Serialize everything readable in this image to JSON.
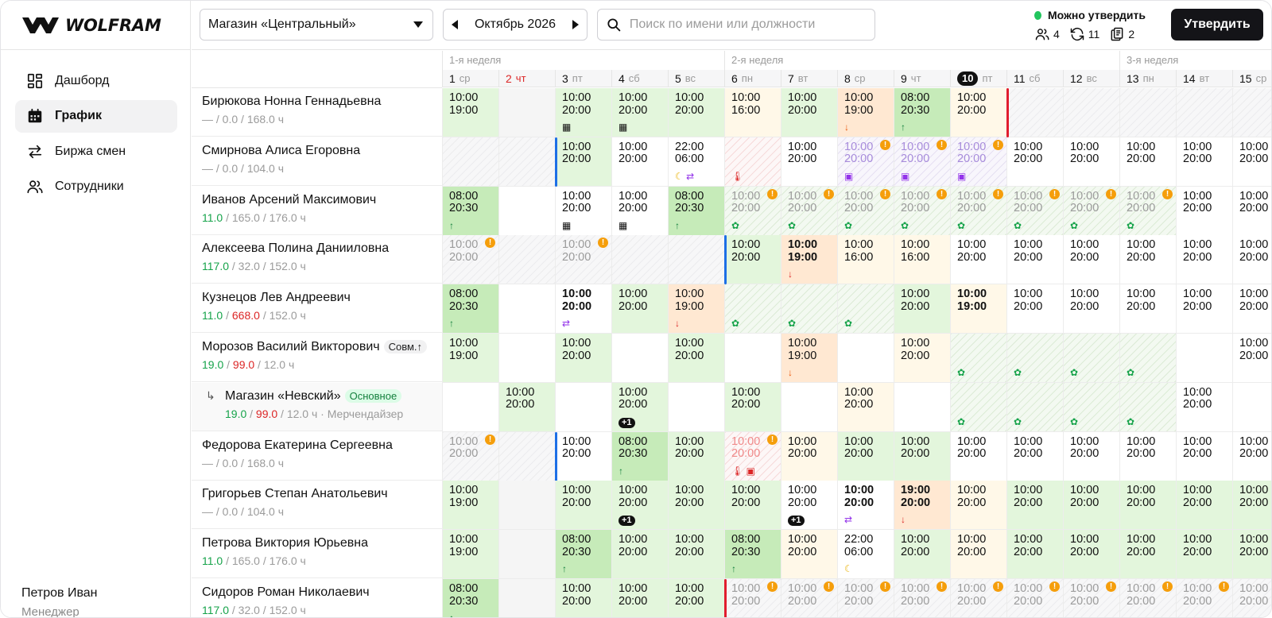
{
  "brand": {
    "name": "WOLFRAM"
  },
  "nav": [
    {
      "label": "Дашборд",
      "icon": "dashboard-icon",
      "active": false
    },
    {
      "label": "График",
      "icon": "calendar-icon",
      "active": true
    },
    {
      "label": "Биржа смен",
      "icon": "swap-icon",
      "active": false
    },
    {
      "label": "Сотрудники",
      "icon": "users-icon",
      "active": false
    }
  ],
  "user": {
    "name": "Петров Иван",
    "role": "Менеджер"
  },
  "toolbar": {
    "store": "Магазин «Центральный»",
    "month": "Октябрь 2026",
    "search_placeholder": "Поиск по имени или должности",
    "status": "Можно утвердить",
    "counts": {
      "people": "4",
      "swaps": "11",
      "docs": "2"
    },
    "approve_label": "Утвердить"
  },
  "weeks": [
    {
      "label": "1-я неделя",
      "start": 0
    },
    {
      "label": "2-я неделя",
      "start": 5
    },
    {
      "label": "3-я неделя",
      "start": 12
    }
  ],
  "days": [
    {
      "d": "1",
      "w": "ср"
    },
    {
      "d": "2",
      "w": "чт",
      "red": true
    },
    {
      "d": "3",
      "w": "пт"
    },
    {
      "d": "4",
      "w": "сб"
    },
    {
      "d": "5",
      "w": "вс"
    },
    {
      "d": "6",
      "w": "пн"
    },
    {
      "d": "7",
      "w": "вт"
    },
    {
      "d": "8",
      "w": "ср"
    },
    {
      "d": "9",
      "w": "чт"
    },
    {
      "d": "10",
      "w": "пт",
      "today": true
    },
    {
      "d": "11",
      "w": "сб"
    },
    {
      "d": "12",
      "w": "вс"
    },
    {
      "d": "13",
      "w": "пн"
    },
    {
      "d": "14",
      "w": "вт"
    },
    {
      "d": "15",
      "w": "ср"
    }
  ],
  "rows": [
    {
      "name": "Бирюкова Нонна Геннадьевна",
      "h1": "—",
      "h1c": "",
      "h2": "0.0",
      "h2c": "",
      "h3": "168.0 ч",
      "cells": [
        {
          "t1": "10:00",
          "t2": "19:00",
          "bg": "lg"
        },
        {
          "bg": "gray"
        },
        {
          "t1": "10:00",
          "t2": "20:00",
          "bg": "lg",
          "icon": "qr"
        },
        {
          "t1": "10:00",
          "t2": "20:00",
          "bg": "lg",
          "icon": "qr"
        },
        {
          "t1": "10:00",
          "t2": "20:00",
          "bg": "lg"
        },
        {
          "t1": "10:00",
          "t2": "16:00",
          "bg": "yl"
        },
        {
          "t1": "10:00",
          "t2": "20:00",
          "bg": "lg"
        },
        {
          "t1": "10:00",
          "t2": "19:00",
          "bg": "or",
          "icon": "dnor"
        },
        {
          "t1": "08:00",
          "t2": "20:30",
          "bg": "dg",
          "icon": "up"
        },
        {
          "t1": "10:00",
          "t2": "20:00",
          "bg": "yl"
        },
        {
          "bg": "hatch",
          "bar": "r"
        },
        {
          "bg": "hatch"
        },
        {
          "bg": "hatch"
        },
        {
          "bg": "hatch"
        },
        {
          "bg": "hatch"
        }
      ]
    },
    {
      "name": "Смирнова Алиса Егоровна",
      "h1": "—",
      "h1c": "",
      "h2": "0.0",
      "h2c": "",
      "h3": "104.0 ч",
      "cells": [
        {
          "bg": "hatch"
        },
        {
          "bg": "hatch"
        },
        {
          "t1": "10:00",
          "t2": "20:00",
          "bg": "lg",
          "bar": "b"
        },
        {
          "t1": "10:00",
          "t2": "20:00",
          "bg": "emp"
        },
        {
          "t1": "22:00",
          "t2": "06:00",
          "bg": "emp",
          "icon": "moonswap"
        },
        {
          "bg": "hatchrd",
          "icon": "therm"
        },
        {
          "t1": "10:00",
          "t2": "20:00",
          "bg": "emp"
        },
        {
          "t1": "10:00",
          "t2": "20:00",
          "bg": "hatchpu",
          "fade": "pu",
          "warn": true,
          "icon": "bag"
        },
        {
          "t1": "10:00",
          "t2": "20:00",
          "bg": "hatchpu",
          "fade": "pu",
          "warn": true,
          "icon": "bag"
        },
        {
          "t1": "10:00",
          "t2": "20:00",
          "bg": "hatchpu",
          "fade": "pu",
          "warn": true,
          "icon": "bag"
        },
        {
          "t1": "10:00",
          "t2": "20:00",
          "bg": "emp"
        },
        {
          "t1": "10:00",
          "t2": "20:00",
          "bg": "emp"
        },
        {
          "t1": "10:00",
          "t2": "20:00",
          "bg": "emp"
        },
        {
          "t1": "10:00",
          "t2": "20:00",
          "bg": "emp"
        },
        {
          "t1": "10:00",
          "t2": "20:00",
          "bg": "emp"
        }
      ]
    },
    {
      "name": "Иванов Арсений Максимович",
      "h1": "11.0",
      "h1c": "g",
      "h2": "165.0",
      "h2c": "",
      "h3": "176.0 ч",
      "cells": [
        {
          "t1": "08:00",
          "t2": "20:30",
          "bg": "dg",
          "icon": "up"
        },
        {
          "bg": "emp"
        },
        {
          "t1": "10:00",
          "t2": "20:00",
          "bg": "emp",
          "icon": "qr"
        },
        {
          "t1": "10:00",
          "t2": "20:00",
          "bg": "emp",
          "icon": "qr"
        },
        {
          "t1": "08:00",
          "t2": "20:30",
          "bg": "dg",
          "icon": "up"
        },
        {
          "t1": "10:00",
          "t2": "20:00",
          "bg": "hatchgr",
          "fade": "g",
          "warn": true,
          "icon": "leaf"
        },
        {
          "t1": "10:00",
          "t2": "20:00",
          "bg": "hatchgr",
          "fade": "g",
          "warn": true,
          "icon": "leaf"
        },
        {
          "t1": "10:00",
          "t2": "20:00",
          "bg": "hatchgr",
          "fade": "g",
          "warn": true,
          "icon": "leaf"
        },
        {
          "t1": "10:00",
          "t2": "20:00",
          "bg": "hatchgr",
          "fade": "g",
          "warn": true,
          "icon": "leaf"
        },
        {
          "t1": "10:00",
          "t2": "20:00",
          "bg": "hatchgr",
          "fade": "g",
          "warn": true,
          "icon": "leaf"
        },
        {
          "t1": "10:00",
          "t2": "20:00",
          "bg": "hatchgr",
          "fade": "g",
          "warn": true,
          "icon": "leaf"
        },
        {
          "t1": "10:00",
          "t2": "20:00",
          "bg": "hatchgr",
          "fade": "g",
          "warn": true,
          "icon": "leaf"
        },
        {
          "t1": "10:00",
          "t2": "20:00",
          "bg": "hatchgr",
          "fade": "g",
          "warn": true,
          "icon": "leaf"
        },
        {
          "t1": "10:00",
          "t2": "20:00",
          "bg": "emp"
        },
        {
          "t1": "10:00",
          "t2": "20:00",
          "bg": "emp"
        }
      ]
    },
    {
      "name": "Алексеева Полина Данииловна",
      "h1": "117.0",
      "h1c": "g",
      "h2": "32.0",
      "h2c": "",
      "h3": "152.0 ч",
      "cells": [
        {
          "t1": "10:00",
          "t2": "20:00",
          "bg": "hatch",
          "fade": "g",
          "warn": true
        },
        {
          "bg": "hatch"
        },
        {
          "t1": "10:00",
          "t2": "20:00",
          "bg": "hatch",
          "fade": "g",
          "warn": true
        },
        {
          "bg": "hatch"
        },
        {
          "bg": "hatch"
        },
        {
          "t1": "10:00",
          "t2": "20:00",
          "bg": "lg",
          "bar": "b"
        },
        {
          "t1": "10:00",
          "t2": "19:00",
          "bg": "or",
          "bold": true,
          "icon": "dn"
        },
        {
          "t1": "10:00",
          "t2": "16:00",
          "bg": "yl"
        },
        {
          "t1": "10:00",
          "t2": "16:00",
          "bg": "yl"
        },
        {
          "t1": "10:00",
          "t2": "20:00",
          "bg": "emp"
        },
        {
          "t1": "10:00",
          "t2": "20:00",
          "bg": "emp"
        },
        {
          "t1": "10:00",
          "t2": "20:00",
          "bg": "emp"
        },
        {
          "t1": "10:00",
          "t2": "20:00",
          "bg": "emp"
        },
        {
          "t1": "10:00",
          "t2": "20:00",
          "bg": "emp"
        },
        {
          "t1": "10:00",
          "t2": "20:00",
          "bg": "emp"
        }
      ]
    },
    {
      "name": "Кузнецов Лев Андреевич",
      "h1": "11.0",
      "h1c": "g",
      "h2": "668.0",
      "h2c": "r",
      "h3": "152.0 ч",
      "cells": [
        {
          "t1": "08:00",
          "t2": "20:30",
          "bg": "dg",
          "icon": "up"
        },
        {
          "bg": "emp"
        },
        {
          "t1": "10:00",
          "t2": "20:00",
          "bg": "emp",
          "bold": true,
          "icon": "swap"
        },
        {
          "t1": "10:00",
          "t2": "20:00",
          "bg": "lg"
        },
        {
          "t1": "10:00",
          "t2": "19:00",
          "bg": "or",
          "icon": "dn"
        },
        {
          "bg": "hatchgr",
          "icon": "leaf"
        },
        {
          "bg": "hatchgr",
          "icon": "leaf"
        },
        {
          "bg": "hatchgr",
          "icon": "leaf"
        },
        {
          "t1": "10:00",
          "t2": "20:00",
          "bg": "lg"
        },
        {
          "t1": "10:00",
          "t2": "19:00",
          "bg": "yl",
          "bold": true
        },
        {
          "t1": "10:00",
          "t2": "20:00",
          "bg": "emp"
        },
        {
          "t1": "10:00",
          "t2": "20:00",
          "bg": "emp"
        },
        {
          "t1": "10:00",
          "t2": "20:00",
          "bg": "emp"
        },
        {
          "t1": "10:00",
          "t2": "20:00",
          "bg": "emp"
        },
        {
          "t1": "10:00",
          "t2": "20:00",
          "bg": "emp"
        }
      ]
    },
    {
      "name": "Морозов Василий Викторович",
      "h1": "19.0",
      "h1c": "g",
      "h2": "99.0",
      "h2c": "r",
      "h3": "12.0 ч",
      "badge": "Совм.↑",
      "cells": [
        {
          "t1": "10:00",
          "t2": "19:00",
          "bg": "lg"
        },
        {
          "bg": "emp"
        },
        {
          "t1": "10:00",
          "t2": "20:00",
          "bg": "lg"
        },
        {
          "bg": "emp"
        },
        {
          "t1": "10:00",
          "t2": "20:00",
          "bg": "lg"
        },
        {
          "bg": "emp"
        },
        {
          "t1": "10:00",
          "t2": "19:00",
          "bg": "or",
          "icon": "dnor"
        },
        {
          "bg": "emp"
        },
        {
          "t1": "10:00",
          "t2": "20:00",
          "bg": "yl"
        },
        {
          "bg": "hatchgr",
          "icon": "leaf"
        },
        {
          "bg": "hatchgr",
          "icon": "leaf"
        },
        {
          "bg": "hatchgr",
          "icon": "leaf"
        },
        {
          "bg": "hatchgr",
          "icon": "leaf"
        },
        {
          "bg": "emp"
        },
        {
          "t1": "10:00",
          "t2": "20:00",
          "bg": "emp"
        }
      ]
    },
    {
      "sub": true,
      "name": "Магазин «Невский»",
      "badge": "Основное",
      "badgeGreen": true,
      "h1": "19.0",
      "h1c": "g",
      "h2": "99.0",
      "h2c": "r",
      "h3": "12.0 ч · Мерчендайзер",
      "cells": [
        {
          "bg": "emp"
        },
        {
          "t1": "10:00",
          "t2": "20:00",
          "bg": "lg"
        },
        {
          "bg": "emp"
        },
        {
          "t1": "10:00",
          "t2": "20:00",
          "bg": "lg",
          "icon": "plus",
          "plus": "+1"
        },
        {
          "bg": "emp"
        },
        {
          "t1": "10:00",
          "t2": "20:00",
          "bg": "lg"
        },
        {
          "bg": "emp"
        },
        {
          "t1": "10:00",
          "t2": "20:00",
          "bg": "yl"
        },
        {
          "bg": "emp"
        },
        {
          "bg": "hatchgr",
          "icon": "leaf"
        },
        {
          "bg": "hatchgr",
          "icon": "leaf"
        },
        {
          "bg": "hatchgr",
          "icon": "leaf"
        },
        {
          "bg": "hatchgr",
          "icon": "leaf"
        },
        {
          "t1": "10:00",
          "t2": "20:00",
          "bg": "emp"
        },
        {
          "bg": "emp"
        }
      ]
    },
    {
      "name": "Федорова Екатерина Сергеевна",
      "h1": "—",
      "h1c": "",
      "h2": "0.0",
      "h2c": "",
      "h3": "168.0 ч",
      "cells": [
        {
          "t1": "10:00",
          "t2": "20:00",
          "bg": "hatch",
          "fade": "g",
          "warn": true
        },
        {
          "bg": "hatch"
        },
        {
          "t1": "10:00",
          "t2": "20:00",
          "bg": "emp",
          "bar": "b"
        },
        {
          "t1": "08:00",
          "t2": "20:30",
          "bg": "dg",
          "icon": "up"
        },
        {
          "t1": "10:00",
          "t2": "20:00",
          "bg": "lg"
        },
        {
          "t1": "10:00",
          "t2": "20:00",
          "bg": "hatchrd",
          "fade": "r",
          "warn": true,
          "icon": "thermbag"
        },
        {
          "t1": "10:00",
          "t2": "20:00",
          "bg": "yl"
        },
        {
          "t1": "10:00",
          "t2": "20:00",
          "bg": "lg"
        },
        {
          "t1": "10:00",
          "t2": "20:00",
          "bg": "lg"
        },
        {
          "t1": "10:00",
          "t2": "20:00",
          "bg": "emp"
        },
        {
          "t1": "10:00",
          "t2": "20:00",
          "bg": "emp"
        },
        {
          "t1": "10:00",
          "t2": "20:00",
          "bg": "emp"
        },
        {
          "t1": "10:00",
          "t2": "20:00",
          "bg": "emp"
        },
        {
          "t1": "10:00",
          "t2": "20:00",
          "bg": "emp"
        },
        {
          "t1": "10:00",
          "t2": "20:00",
          "bg": "emp"
        }
      ]
    },
    {
      "name": "Григорьев Степан Анатольевич",
      "h1": "—",
      "h1c": "",
      "h2": "0.0",
      "h2c": "",
      "h3": "104.0 ч",
      "cells": [
        {
          "t1": "10:00",
          "t2": "19:00",
          "bg": "lg"
        },
        {
          "bg": "gray"
        },
        {
          "t1": "10:00",
          "t2": "20:00",
          "bg": "lg"
        },
        {
          "t1": "10:00",
          "t2": "20:00",
          "bg": "lg",
          "icon": "plus",
          "plus": "+1"
        },
        {
          "t1": "10:00",
          "t2": "20:00",
          "bg": "lg"
        },
        {
          "t1": "10:00",
          "t2": "20:00",
          "bg": "lg"
        },
        {
          "t1": "10:00",
          "t2": "20:00",
          "bg": "emp",
          "icon": "plus",
          "plus": "+1"
        },
        {
          "t1": "10:00",
          "t2": "20:00",
          "bg": "emp",
          "bold": true,
          "icon": "swap"
        },
        {
          "t1": "19:00",
          "t2": "20:00",
          "bg": "or",
          "bold": true,
          "icon": "dn"
        },
        {
          "t1": "10:00",
          "t2": "20:00",
          "bg": "yl"
        },
        {
          "t1": "10:00",
          "t2": "20:00",
          "bg": "lg"
        },
        {
          "t1": "10:00",
          "t2": "20:00",
          "bg": "lg"
        },
        {
          "t1": "10:00",
          "t2": "20:00",
          "bg": "lg"
        },
        {
          "t1": "10:00",
          "t2": "20:00",
          "bg": "lg"
        },
        {
          "t1": "10:00",
          "t2": "20:00",
          "bg": "lg"
        }
      ]
    },
    {
      "name": "Петрова Виктория Юрьевна",
      "h1": "11.0",
      "h1c": "g",
      "h2": "165.0",
      "h2c": "",
      "h3": "176.0 ч",
      "cells": [
        {
          "t1": "10:00",
          "t2": "19:00",
          "bg": "lg"
        },
        {
          "bg": "gray"
        },
        {
          "t1": "08:00",
          "t2": "20:30",
          "bg": "dg",
          "icon": "up"
        },
        {
          "t1": "10:00",
          "t2": "20:00",
          "bg": "lg"
        },
        {
          "t1": "10:00",
          "t2": "20:00",
          "bg": "lg"
        },
        {
          "t1": "08:00",
          "t2": "20:30",
          "bg": "dg",
          "icon": "up"
        },
        {
          "t1": "10:00",
          "t2": "20:00",
          "bg": "yl"
        },
        {
          "t1": "22:00",
          "t2": "06:00",
          "bg": "emp",
          "icon": "moon"
        },
        {
          "t1": "10:00",
          "t2": "20:00",
          "bg": "lg"
        },
        {
          "t1": "10:00",
          "t2": "20:00",
          "bg": "yl"
        },
        {
          "t1": "10:00",
          "t2": "20:00",
          "bg": "lg"
        },
        {
          "t1": "10:00",
          "t2": "20:00",
          "bg": "lg"
        },
        {
          "t1": "10:00",
          "t2": "20:00",
          "bg": "lg"
        },
        {
          "t1": "10:00",
          "t2": "20:00",
          "bg": "lg"
        },
        {
          "t1": "10:00",
          "t2": "20:00",
          "bg": "lg"
        }
      ]
    },
    {
      "name": "Сидоров Роман Николаевич",
      "h1": "117.0",
      "h1c": "g",
      "h2": "32.0",
      "h2c": "",
      "h3": "152.0 ч",
      "cells": [
        {
          "t1": "08:00",
          "t2": "20:30",
          "bg": "dg",
          "icon": "up"
        },
        {
          "bg": "gray"
        },
        {
          "t1": "10:00",
          "t2": "20:00",
          "bg": "lg"
        },
        {
          "t1": "10:00",
          "t2": "20:00",
          "bg": "lg"
        },
        {
          "t1": "10:00",
          "t2": "20:00",
          "bg": "lg"
        },
        {
          "t1": "10:00",
          "t2": "20:00",
          "bg": "hatch",
          "fade": "g",
          "warn": true,
          "bar": "r"
        },
        {
          "t1": "10:00",
          "t2": "20:00",
          "bg": "hatch",
          "fade": "g",
          "warn": true
        },
        {
          "t1": "10:00",
          "t2": "20:00",
          "bg": "hatch",
          "fade": "g",
          "warn": true
        },
        {
          "t1": "10:00",
          "t2": "20:00",
          "bg": "hatch",
          "fade": "g",
          "warn": true
        },
        {
          "t1": "10:00",
          "t2": "20:00",
          "bg": "hatch",
          "fade": "g",
          "warn": true
        },
        {
          "t1": "10:00",
          "t2": "20:00",
          "bg": "hatch",
          "fade": "g",
          "warn": true
        },
        {
          "t1": "10:00",
          "t2": "20:00",
          "bg": "hatch",
          "fade": "g",
          "warn": true
        },
        {
          "t1": "10:00",
          "t2": "20:00",
          "bg": "hatch",
          "fade": "g",
          "warn": true
        },
        {
          "t1": "10:00",
          "t2": "20:00",
          "bg": "hatch",
          "fade": "g",
          "warn": true
        },
        {
          "t1": "10:00",
          "t2": "20:00",
          "bg": "hatch",
          "fade": "g",
          "warn": true
        }
      ]
    }
  ]
}
